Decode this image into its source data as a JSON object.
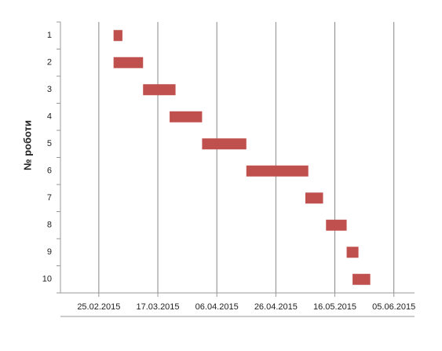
{
  "chart_data": {
    "type": "gantt",
    "y_label": "№ роботи",
    "categories": [
      "1",
      "2",
      "3",
      "4",
      "5",
      "6",
      "7",
      "8",
      "9",
      "10"
    ],
    "start": [
      "2015-03-02",
      "2015-03-02",
      "2015-03-12",
      "2015-03-21",
      "2015-04-01",
      "2015-04-16",
      "2015-05-06",
      "2015-05-13",
      "2015-05-20",
      "2015-05-22"
    ],
    "end": [
      "2015-03-05",
      "2015-03-12",
      "2015-03-23",
      "2015-04-01",
      "2015-04-16",
      "2015-05-07",
      "2015-05-12",
      "2015-05-20",
      "2015-05-24",
      "2015-05-28"
    ],
    "color": "#c0504d",
    "xlim": [
      "2015-02-12",
      "2015-06-12"
    ],
    "xticks": [
      {
        "value": "2015-02-25",
        "label": "25.02.2015"
      },
      {
        "value": "2015-03-17",
        "label": "17.03.2015"
      },
      {
        "value": "2015-04-06",
        "label": "06.04.2015"
      },
      {
        "value": "2015-04-26",
        "label": "26.04.2015"
      },
      {
        "value": "2015-05-16",
        "label": "16.05.2015"
      },
      {
        "value": "2015-06-05",
        "label": "05.06.2015"
      }
    ],
    "grid": true
  }
}
